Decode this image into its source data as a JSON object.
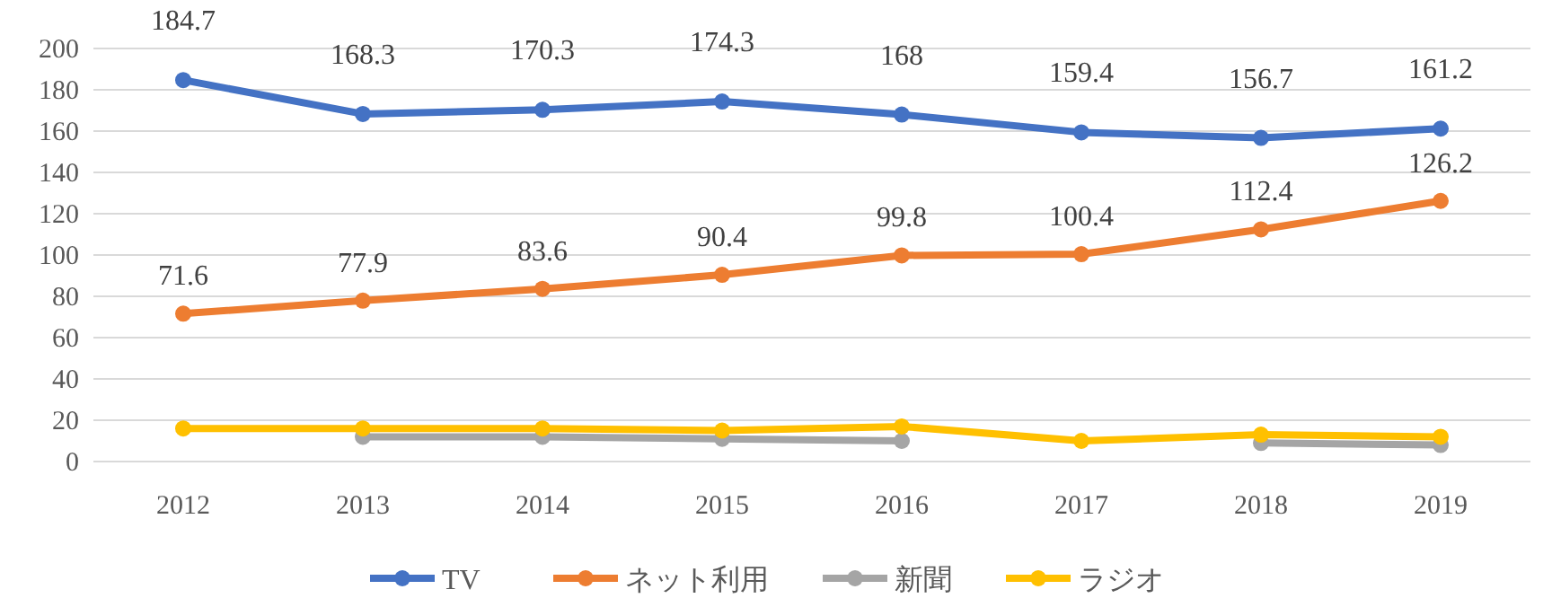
{
  "chart_data": {
    "type": "line",
    "categories": [
      "2012",
      "2013",
      "2014",
      "2015",
      "2016",
      "2017",
      "2018",
      "2019"
    ],
    "ylim": [
      0,
      200
    ],
    "yticks": [
      0,
      20,
      40,
      60,
      80,
      100,
      120,
      140,
      160,
      180,
      200
    ],
    "grid": "y",
    "legend": "bottom",
    "marker": "circle",
    "series": [
      {
        "name": "TV",
        "color": "#4472c4",
        "values": [
          184.7,
          168.3,
          170.3,
          174.3,
          168,
          159.4,
          156.7,
          161.2
        ],
        "value_labels": [
          "184.7",
          "168.3",
          "170.3",
          "174.3",
          "168",
          "159.4",
          "156.7",
          "161.2"
        ]
      },
      {
        "name": "ネット利用",
        "color": "#ed7d31",
        "values": [
          71.6,
          77.9,
          83.6,
          90.4,
          99.8,
          100.4,
          112.4,
          126.2
        ],
        "value_labels": [
          "71.6",
          "77.9",
          "83.6",
          "90.4",
          "99.8",
          "100.4",
          "112.4",
          "126.2"
        ]
      },
      {
        "name": "新聞",
        "color": "#a5a5a5",
        "values": [
          null,
          12,
          12,
          11,
          10,
          null,
          9,
          8
        ]
      },
      {
        "name": "ラジオ",
        "color": "#ffc000",
        "values": [
          16,
          16,
          16,
          15,
          17,
          10,
          13,
          12
        ]
      }
    ]
  }
}
